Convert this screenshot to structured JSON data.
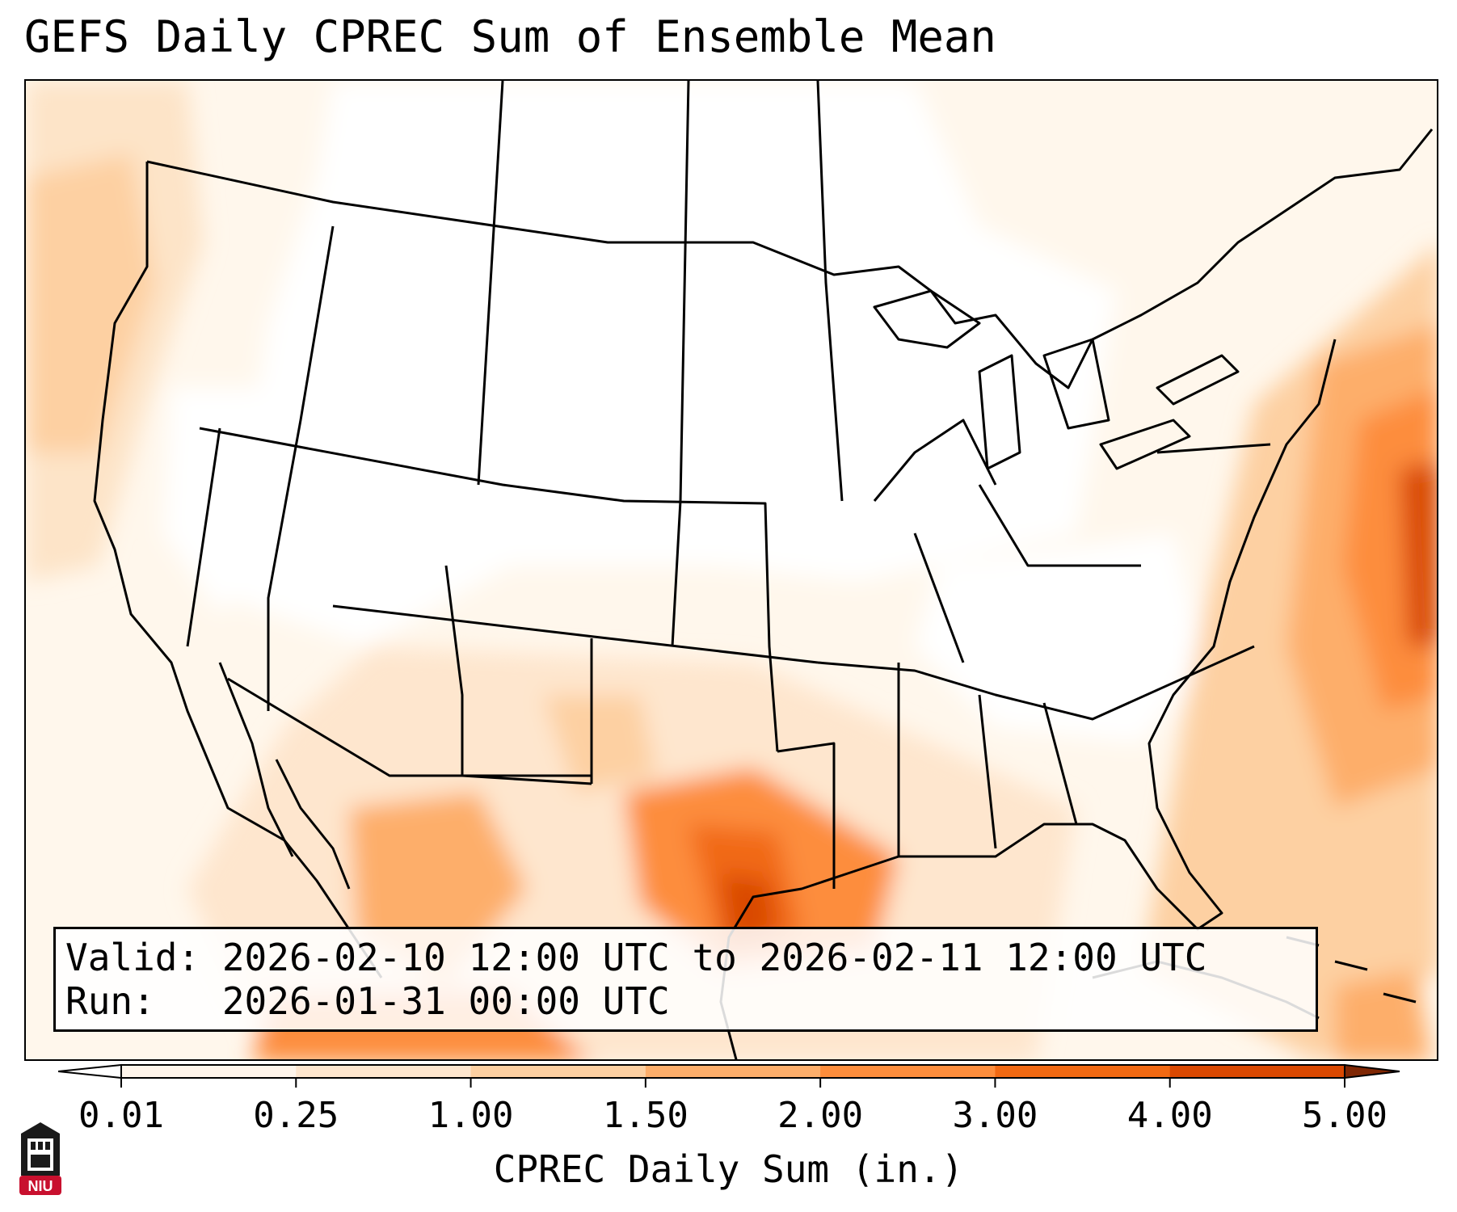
{
  "title": "GEFS Daily CPREC Sum of Ensemble Mean",
  "info": {
    "valid_line": "Valid: 2026-02-10 12:00 UTC to 2026-02-11 12:00 UTC",
    "run_line": "Run:   2026-01-31 00:00 UTC"
  },
  "colorbar": {
    "title": "CPREC Daily Sum (in.)",
    "ticks": [
      "0.01",
      "0.25",
      "1.00",
      "1.50",
      "2.00",
      "3.00",
      "4.00",
      "5.00"
    ],
    "colors": [
      "#fff5eb",
      "#fee6ce",
      "#fdd0a2",
      "#fdae6b",
      "#fd8d3c",
      "#f16913",
      "#d94801",
      "#a63603"
    ],
    "under_color": "#ffffff",
    "over_color": "#7f2704"
  },
  "logo": {
    "text": "NIU",
    "color": "#c8102e"
  },
  "icons": {
    "logo": "niu-logo-icon"
  }
}
